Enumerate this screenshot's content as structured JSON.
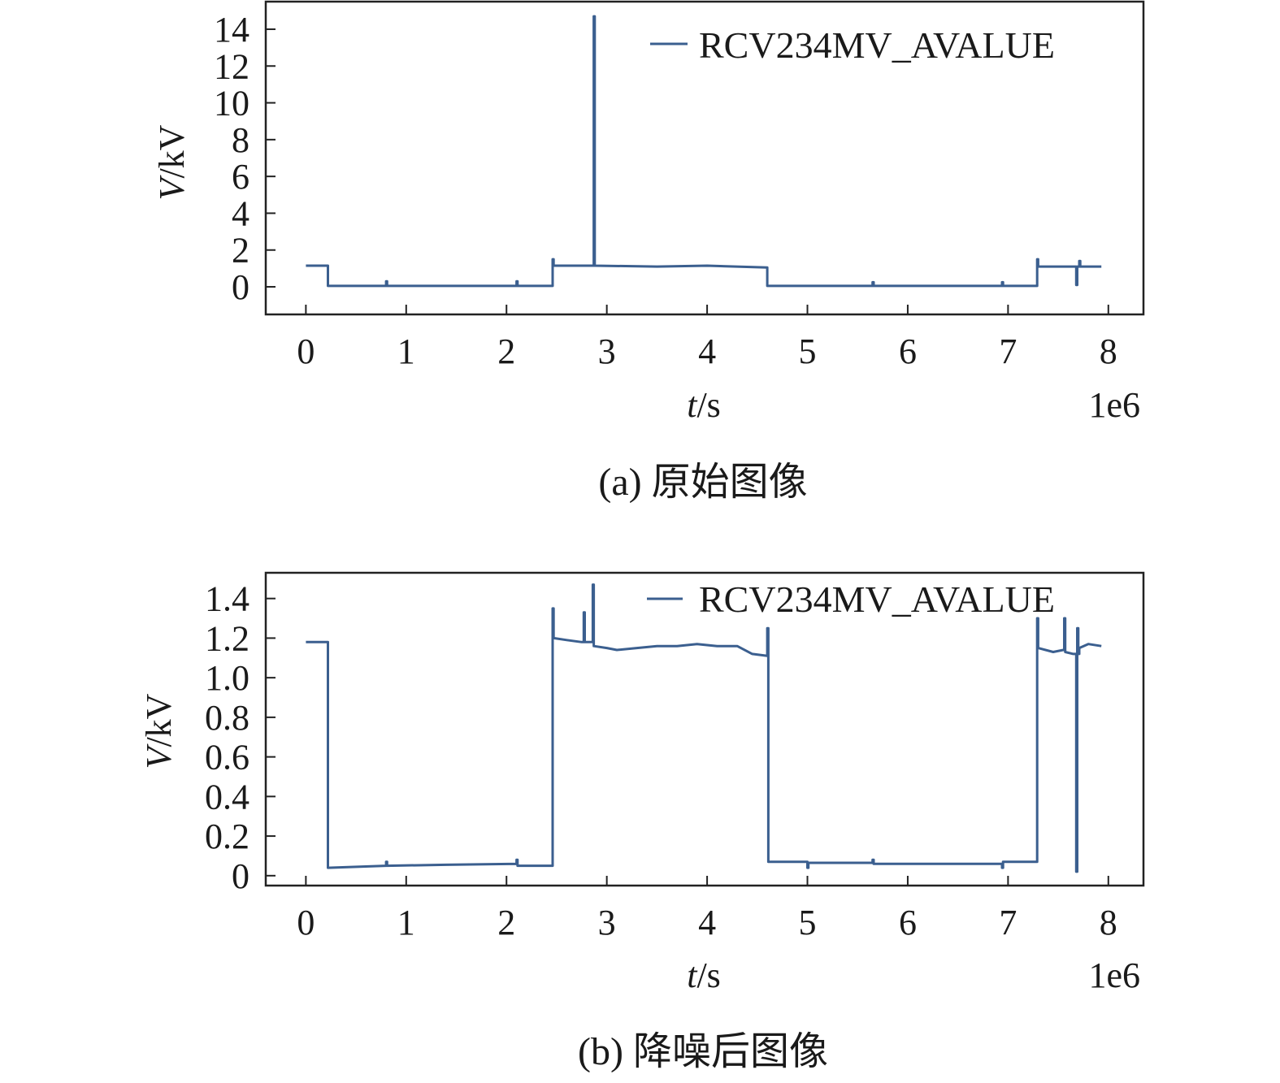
{
  "chart_data": [
    {
      "type": "line",
      "caption": "(a) 原始图像",
      "xlabel_var": "t",
      "xlabel_unit": "/s",
      "ylabel_var": "V",
      "ylabel_unit": "/kV",
      "x_offset_label": "1e6",
      "xlim": [
        -0.4,
        8.35
      ],
      "ylim": [
        -1.5,
        15.5
      ],
      "xticks": [
        0,
        1,
        2,
        3,
        4,
        5,
        6,
        7,
        8
      ],
      "xtick_labels": [
        "0",
        "1",
        "2",
        "3",
        "4",
        "5",
        "6",
        "7",
        "8"
      ],
      "yticks": [
        0,
        2,
        4,
        6,
        8,
        10,
        12,
        14
      ],
      "ytick_labels": [
        "0",
        "2",
        "4",
        "6",
        "8",
        "10",
        "12",
        "14"
      ],
      "legend_position": "top-right",
      "color": "#3b5f8f",
      "series": [
        {
          "name": "RCV234MV_AVALUE",
          "x": [
            0,
            0.22,
            0.22,
            0.8,
            0.8,
            0.81,
            0.81,
            2.1,
            2.1,
            2.11,
            2.11,
            2.46,
            2.46,
            2.47,
            2.47,
            2.87,
            2.87,
            2.88,
            2.88,
            3.5,
            4.0,
            4.6,
            4.6,
            5.65,
            5.65,
            5.66,
            5.66,
            6.94,
            6.94,
            6.95,
            6.95,
            7.29,
            7.29,
            7.3,
            7.3,
            7.68,
            7.68,
            7.69,
            7.69,
            7.71,
            7.71,
            7.72,
            7.72,
            7.93
          ],
          "y": [
            1.15,
            1.15,
            0.05,
            0.05,
            0.3,
            0.3,
            0.05,
            0.05,
            0.3,
            0.3,
            0.05,
            0.05,
            1.5,
            1.5,
            1.15,
            1.15,
            14.7,
            14.7,
            1.15,
            1.1,
            1.15,
            1.05,
            0.05,
            0.05,
            0.25,
            0.25,
            0.05,
            0.05,
            0.25,
            0.25,
            0.05,
            0.05,
            1.5,
            1.5,
            1.1,
            1.1,
            0.1,
            0.1,
            1.1,
            1.1,
            1.4,
            1.4,
            1.1,
            1.1
          ]
        }
      ]
    },
    {
      "type": "line",
      "caption": "(b) 降噪后图像",
      "xlabel_var": "t",
      "xlabel_unit": "/s",
      "ylabel_var": "V",
      "ylabel_unit": "/kV",
      "x_offset_label": "1e6",
      "xlim": [
        -0.4,
        8.35
      ],
      "ylim": [
        -0.05,
        1.53
      ],
      "xticks": [
        0,
        1,
        2,
        3,
        4,
        5,
        6,
        7,
        8
      ],
      "xtick_labels": [
        "0",
        "1",
        "2",
        "3",
        "4",
        "5",
        "6",
        "7",
        "8"
      ],
      "yticks": [
        0,
        0.2,
        0.4,
        0.6,
        0.8,
        1.0,
        1.2,
        1.4
      ],
      "ytick_labels": [
        "0",
        "0.2",
        "0.4",
        "0.6",
        "0.8",
        "1.0",
        "1.2",
        "1.4"
      ],
      "legend_position": "top-right",
      "color": "#3b5f8f",
      "series": [
        {
          "name": "RCV234MV_AVALUE",
          "x": [
            0,
            0.22,
            0.22,
            0.8,
            0.8,
            0.81,
            0.81,
            1.4,
            2.1,
            2.1,
            2.11,
            2.11,
            2.46,
            2.46,
            2.47,
            2.47,
            2.6,
            2.75,
            2.77,
            2.77,
            2.78,
            2.78,
            2.86,
            2.86,
            2.87,
            2.87,
            3.0,
            3.1,
            3.3,
            3.5,
            3.7,
            3.9,
            4.1,
            4.3,
            4.45,
            4.6,
            4.6,
            4.61,
            4.61,
            5.0,
            5.0,
            5.01,
            5.01,
            5.65,
            5.65,
            5.66,
            5.66,
            6.5,
            6.94,
            6.94,
            6.95,
            6.95,
            7.29,
            7.29,
            7.3,
            7.3,
            7.45,
            7.55,
            7.56,
            7.56,
            7.57,
            7.57,
            7.65,
            7.68,
            7.68,
            7.69,
            7.69,
            7.7,
            7.7,
            7.71,
            7.71,
            7.8,
            7.93
          ],
          "y": [
            1.18,
            1.18,
            0.04,
            0.05,
            0.07,
            0.07,
            0.05,
            0.055,
            0.06,
            0.08,
            0.08,
            0.05,
            0.05,
            1.35,
            1.35,
            1.2,
            1.19,
            1.18,
            1.18,
            1.33,
            1.33,
            1.18,
            1.18,
            1.47,
            1.47,
            1.16,
            1.15,
            1.14,
            1.15,
            1.16,
            1.16,
            1.17,
            1.16,
            1.16,
            1.12,
            1.11,
            1.25,
            1.25,
            0.07,
            0.07,
            0.04,
            0.04,
            0.065,
            0.065,
            0.08,
            0.08,
            0.06,
            0.06,
            0.06,
            0.04,
            0.04,
            0.07,
            0.07,
            1.3,
            1.3,
            1.15,
            1.13,
            1.14,
            1.14,
            1.3,
            1.3,
            1.13,
            1.12,
            1.12,
            0.02,
            0.02,
            1.25,
            1.25,
            1.12,
            1.12,
            1.15,
            1.17,
            1.16
          ]
        }
      ]
    }
  ]
}
